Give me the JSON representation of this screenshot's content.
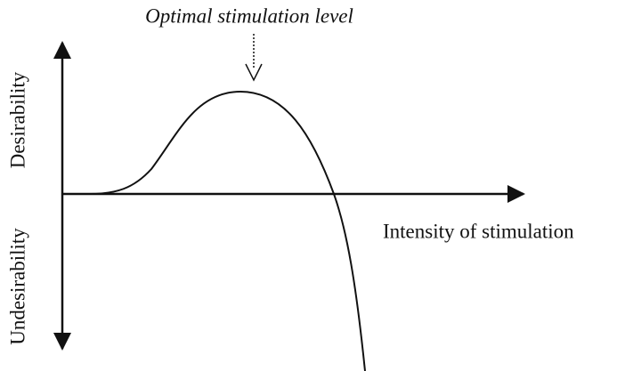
{
  "annotation": "Optimal stimulation level",
  "y_axis": {
    "upper_label": "Desirability",
    "lower_label": "Undesirability"
  },
  "x_axis": {
    "label": "Intensity of stimulation"
  }
}
